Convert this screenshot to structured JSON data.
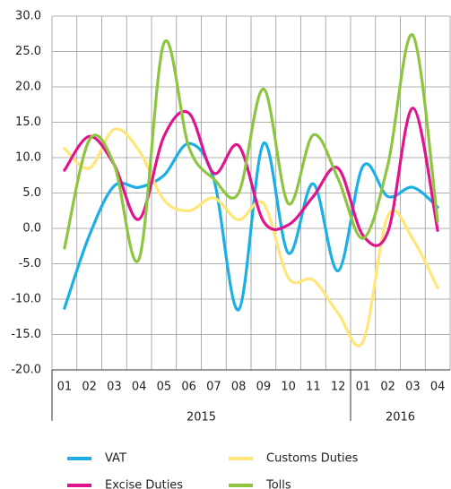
{
  "chart_data": {
    "type": "line",
    "groups": [
      {
        "label": "2015",
        "categories": [
          "01",
          "02",
          "03",
          "04",
          "05",
          "06",
          "07",
          "08",
          "09",
          "10",
          "11",
          "12"
        ]
      },
      {
        "label": "2016",
        "categories": [
          "01",
          "02",
          "03",
          "04"
        ]
      }
    ],
    "series": [
      {
        "name": "VAT",
        "color": "#1bafe5",
        "values": [
          -11.3,
          -1,
          6,
          5.8,
          7.5,
          12,
          7,
          -11.5,
          12,
          -3.5,
          6.3,
          -6,
          8.8,
          4.5,
          5.8,
          3
        ]
      },
      {
        "name": "Customs Duties",
        "color": "#ffe676",
        "values": [
          11.3,
          8.5,
          14,
          11,
          4,
          2.5,
          4.3,
          1.2,
          3.5,
          -7,
          -7.3,
          -12,
          -16,
          1.8,
          -1.5,
          -8.4
        ]
      },
      {
        "name": "Excise Duties",
        "color": "#e0148c",
        "values": [
          8.2,
          13,
          9,
          1.3,
          13,
          16.3,
          7.8,
          11.7,
          1,
          0.5,
          4.5,
          8.5,
          -1,
          -0.5,
          17,
          -0.3
        ]
      },
      {
        "name": "Tolls",
        "color": "#8dc540",
        "values": [
          -2.8,
          12.5,
          9,
          -4.3,
          26.2,
          11.5,
          7,
          5,
          19.7,
          3.5,
          13.2,
          7,
          -1.4,
          9,
          27.3,
          1
        ]
      }
    ],
    "ylim": [
      -20,
      30
    ],
    "yticks": [
      {
        "value": -20,
        "label": "-20.0"
      },
      {
        "value": -15,
        "label": "-15.0"
      },
      {
        "value": -10,
        "label": "-10.0"
      },
      {
        "value": -5,
        "label": "-5.0"
      },
      {
        "value": 0,
        "label": "0.0"
      },
      {
        "value": 5,
        "label": "5.0"
      },
      {
        "value": 10,
        "label": "10.0"
      },
      {
        "value": 15,
        "label": "15.0"
      },
      {
        "value": 20,
        "label": "20.0"
      },
      {
        "value": 25,
        "label": "25.0"
      },
      {
        "value": 30,
        "label": "30.0"
      }
    ],
    "grid": true,
    "smooth": true,
    "legend": "bottom"
  }
}
